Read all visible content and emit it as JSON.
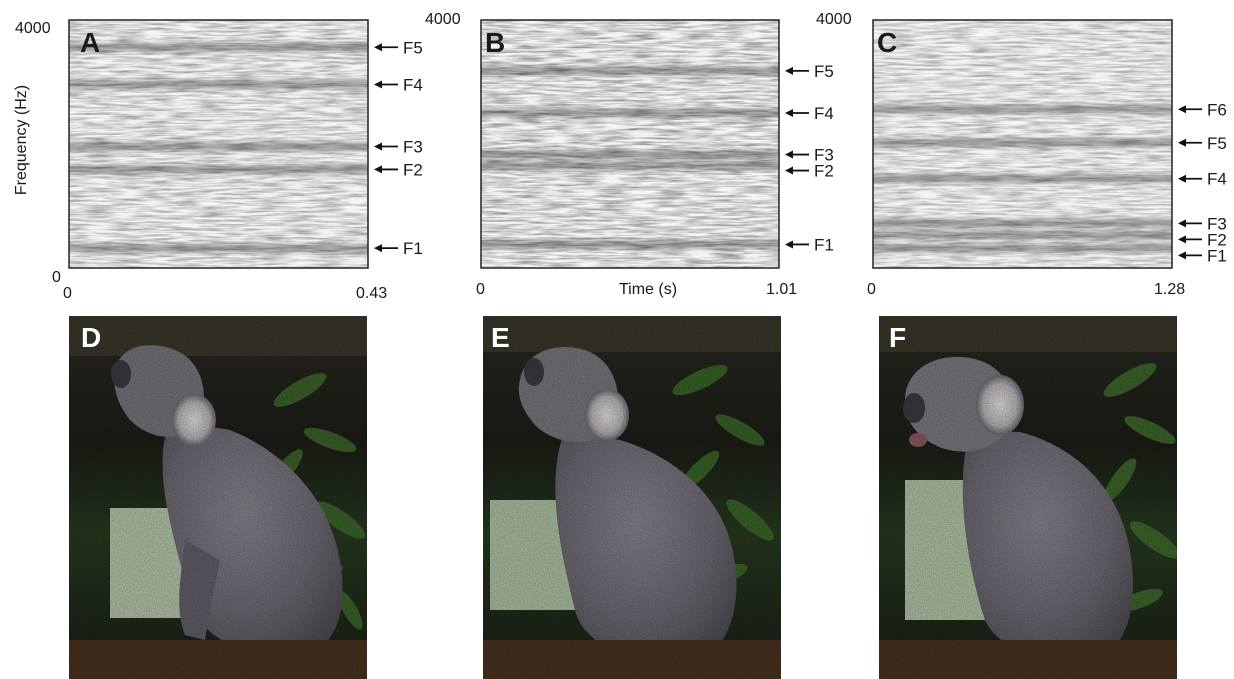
{
  "chart_data": [
    {
      "type": "heatmap",
      "panel": "A",
      "xlim": [
        0,
        0.43
      ],
      "ylim": [
        0,
        4000
      ],
      "x_ticks": [
        "0",
        "0.43"
      ],
      "y_ticks": [
        "0",
        "4000"
      ],
      "xlabel": "",
      "ylabel": "Frequency (Hz)",
      "formants": [
        {
          "label": "F5",
          "freq_hz": 3560
        },
        {
          "label": "F4",
          "freq_hz": 2960
        },
        {
          "label": "F3",
          "freq_hz": 1960
        },
        {
          "label": "F2",
          "freq_hz": 1590
        },
        {
          "label": "F1",
          "freq_hz": 320
        }
      ]
    },
    {
      "type": "heatmap",
      "panel": "B",
      "xlim": [
        0,
        1.01
      ],
      "ylim": [
        0,
        4000
      ],
      "x_ticks": [
        "0",
        "1.01"
      ],
      "y_ticks": [
        "4000"
      ],
      "xlabel": "Time (s)",
      "ylabel": "",
      "formants": [
        {
          "label": "F5",
          "freq_hz": 3180
        },
        {
          "label": "F4",
          "freq_hz": 2500
        },
        {
          "label": "F3",
          "freq_hz": 1830
        },
        {
          "label": "F2",
          "freq_hz": 1650
        },
        {
          "label": "F1",
          "freq_hz": 380
        }
      ]
    },
    {
      "type": "heatmap",
      "panel": "C",
      "xlim": [
        0,
        1.28
      ],
      "ylim": [
        0,
        4000
      ],
      "x_ticks": [
        "0",
        "1.28"
      ],
      "y_ticks": [
        "4000"
      ],
      "xlabel": "",
      "ylabel": "",
      "formants": [
        {
          "label": "F6",
          "freq_hz": 2560
        },
        {
          "label": "F5",
          "freq_hz": 2020
        },
        {
          "label": "F4",
          "freq_hz": 1440
        },
        {
          "label": "F3",
          "freq_hz": 720
        },
        {
          "label": "F2",
          "freq_hz": 530
        },
        {
          "label": "F1",
          "freq_hz": 320
        }
      ]
    }
  ],
  "photos": [
    {
      "panel": "D"
    },
    {
      "panel": "E"
    },
    {
      "panel": "F"
    }
  ],
  "colors": {
    "band": "#111111",
    "background": "#f4f4f4",
    "frame": "#222222",
    "photo_letter": "#ffffff",
    "spectro_letter": "#1a1a1a"
  }
}
